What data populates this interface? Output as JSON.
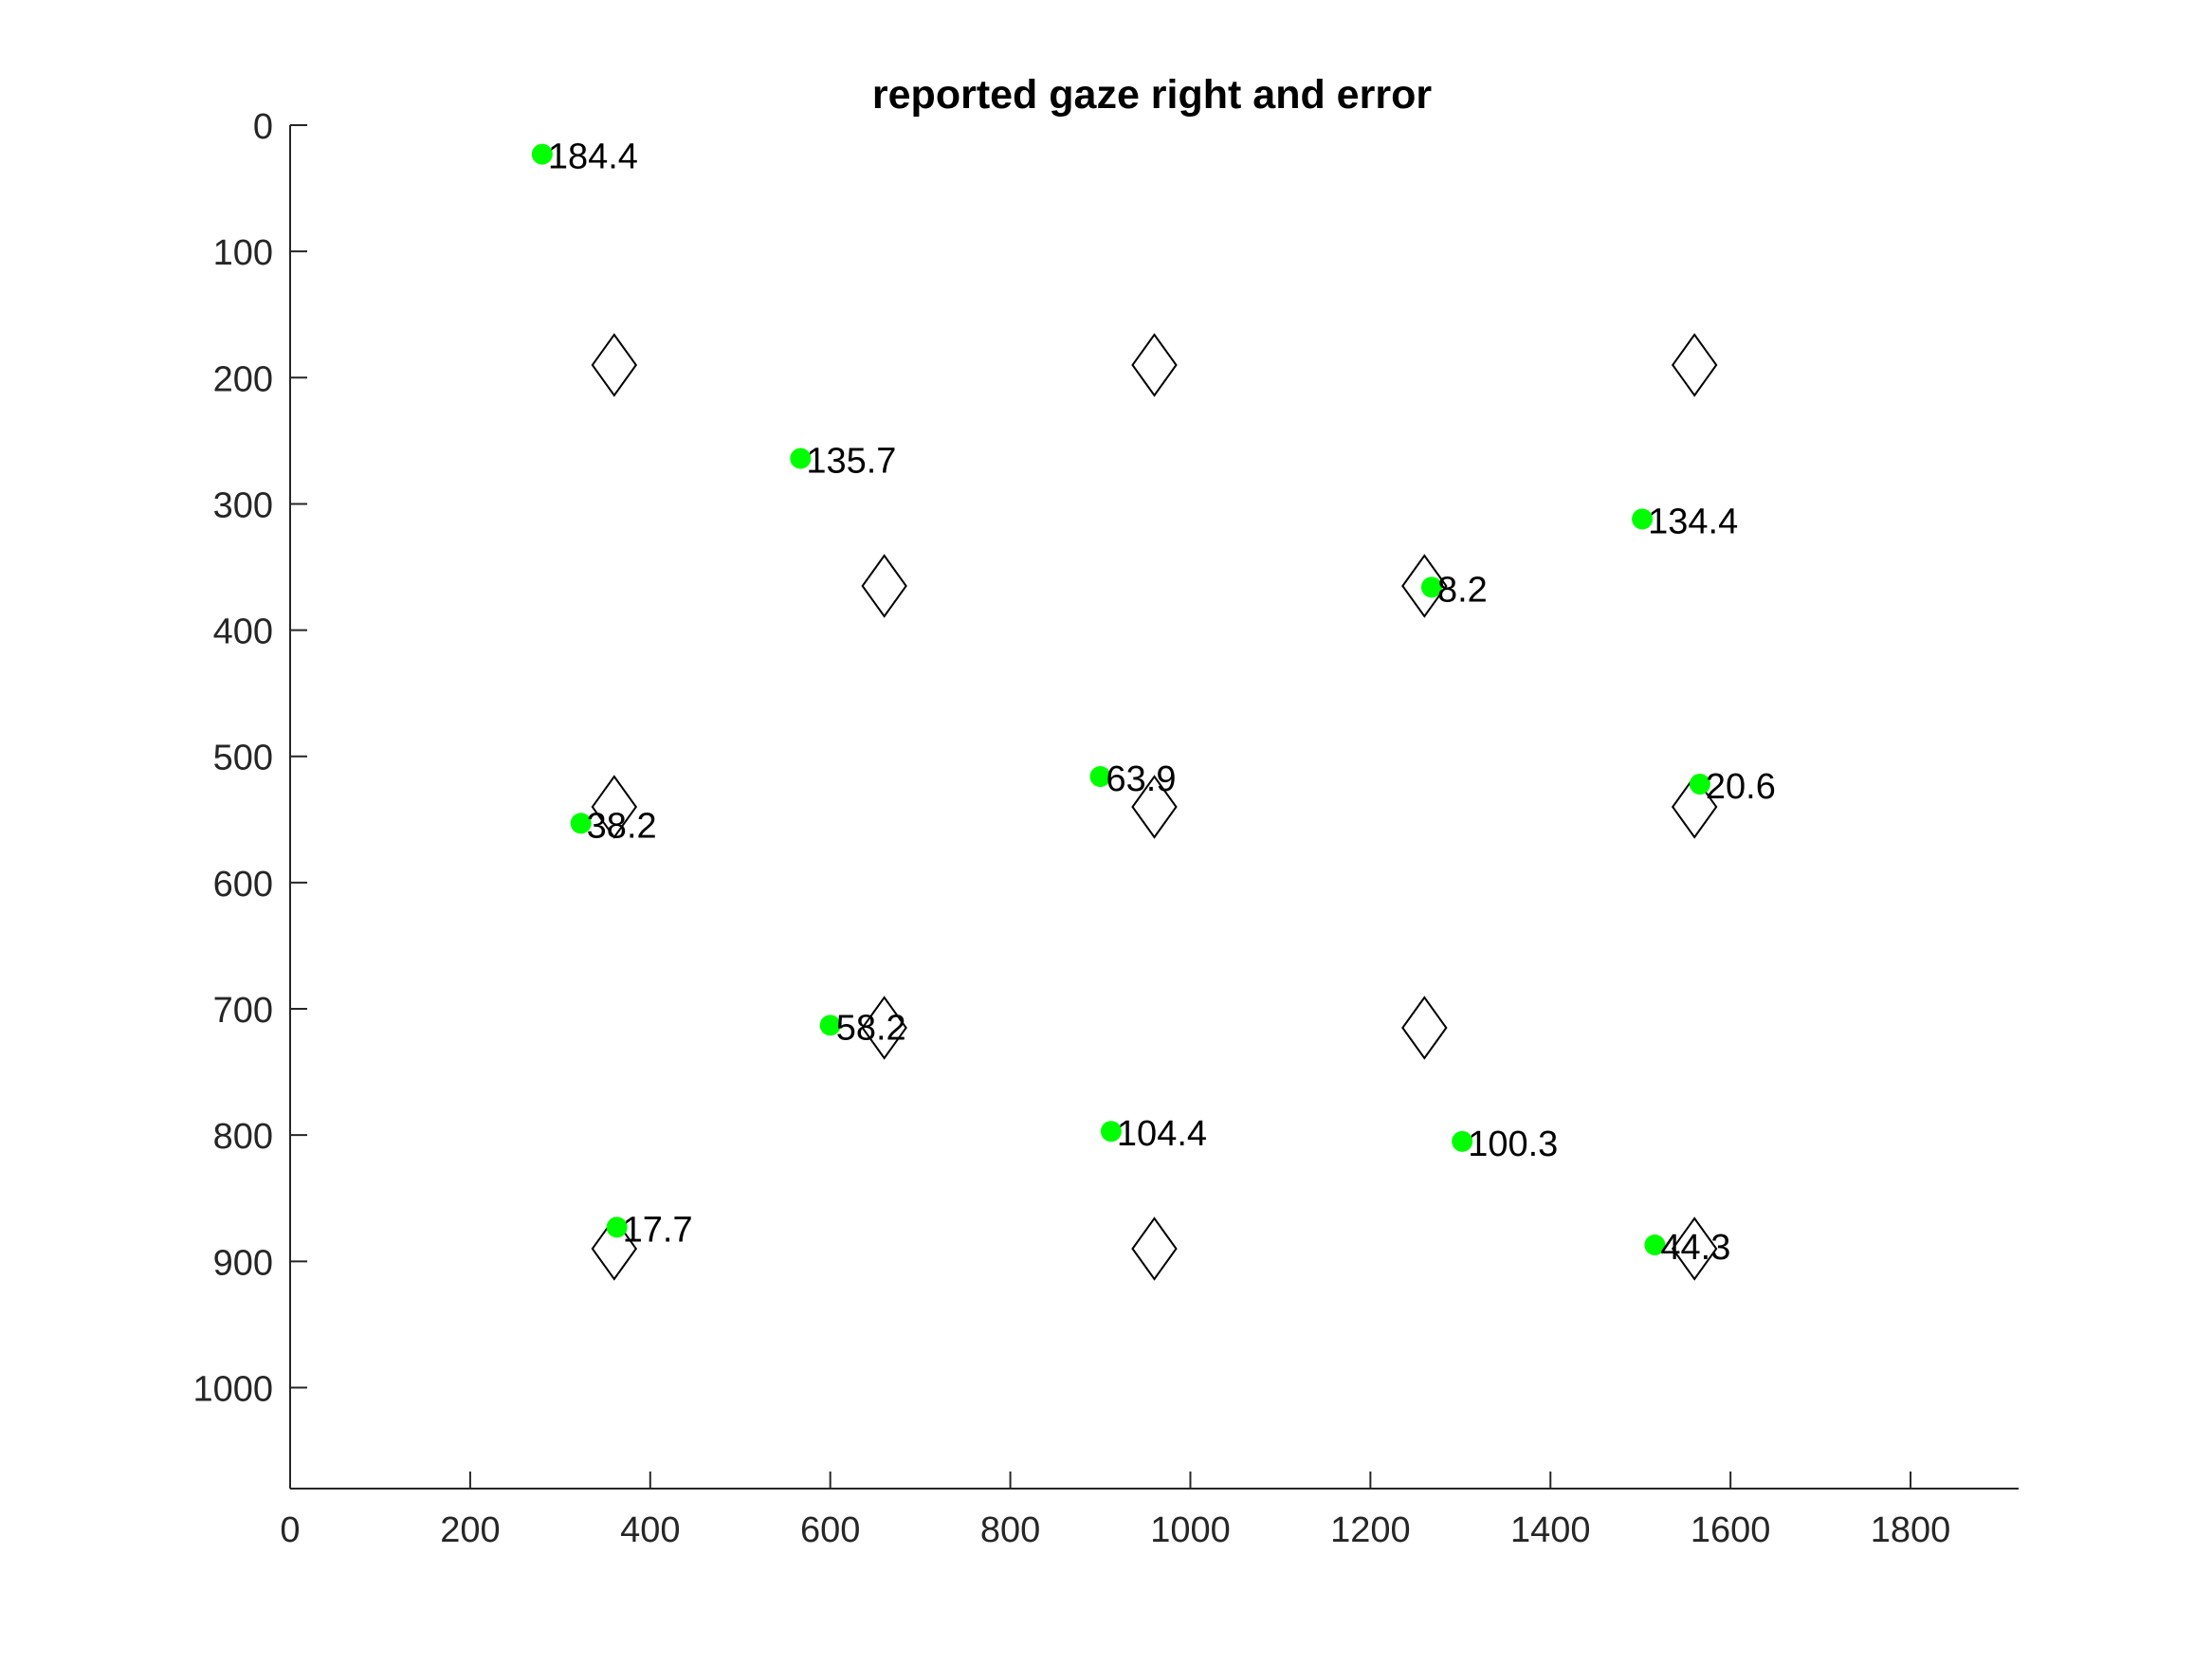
{
  "chart_data": {
    "type": "scatter",
    "title": "reported gaze right and error",
    "xlabel": "",
    "ylabel": "",
    "xlim": [
      0,
      1920
    ],
    "ylim": [
      0,
      1080
    ],
    "y_reversed": true,
    "grid": false,
    "xticks": [
      0,
      200,
      400,
      600,
      800,
      1000,
      1200,
      1400,
      1600,
      1800
    ],
    "yticks": [
      0,
      100,
      200,
      300,
      400,
      500,
      600,
      700,
      800,
      900,
      1000
    ],
    "series": [
      {
        "marker": "diamond",
        "color": "#000000",
        "fill": "none",
        "points": [
          {
            "x": 360,
            "y": 190
          },
          {
            "x": 960,
            "y": 190
          },
          {
            "x": 1560,
            "y": 190
          },
          {
            "x": 660,
            "y": 365
          },
          {
            "x": 1260,
            "y": 365
          },
          {
            "x": 360,
            "y": 540
          },
          {
            "x": 960,
            "y": 540
          },
          {
            "x": 1560,
            "y": 540
          },
          {
            "x": 660,
            "y": 715
          },
          {
            "x": 1260,
            "y": 715
          },
          {
            "x": 360,
            "y": 890
          },
          {
            "x": 960,
            "y": 890
          },
          {
            "x": 1560,
            "y": 890
          }
        ]
      },
      {
        "marker": "dot",
        "color": "#00ff00",
        "points": [
          {
            "x": 280,
            "y": 23,
            "label": "184.4"
          },
          {
            "x": 567,
            "y": 264,
            "label": "135.7"
          },
          {
            "x": 1502,
            "y": 312,
            "label": "134.4"
          },
          {
            "x": 1268,
            "y": 366,
            "label": "8.2"
          },
          {
            "x": 900,
            "y": 516,
            "label": "63.9"
          },
          {
            "x": 1566,
            "y": 522,
            "label": "20.6"
          },
          {
            "x": 323,
            "y": 553,
            "label": "38.2"
          },
          {
            "x": 600,
            "y": 713,
            "label": "58.2"
          },
          {
            "x": 912,
            "y": 797,
            "label": "104.4"
          },
          {
            "x": 1302,
            "y": 805,
            "label": "100.3"
          },
          {
            "x": 363,
            "y": 873,
            "label": "17.7"
          },
          {
            "x": 1516,
            "y": 887,
            "label": "44.3"
          }
        ]
      }
    ]
  }
}
